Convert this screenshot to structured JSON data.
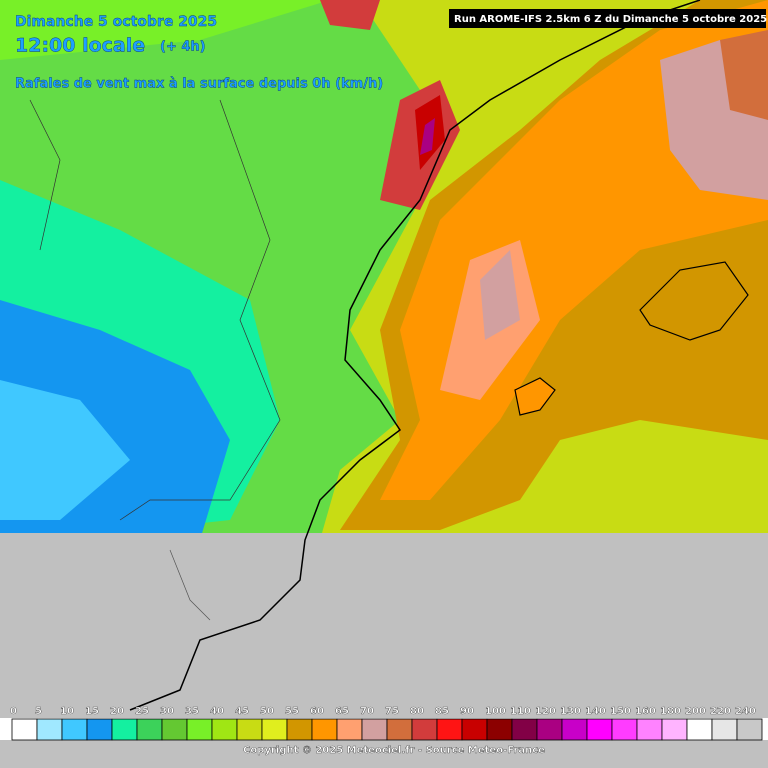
{
  "header": {
    "date": "Dimanche 5 octobre 2025",
    "time": "12:00 locale",
    "offset": "(+ 4h)",
    "subtitle": "Rafales de vent max à la surface depuis 0h (km/h)",
    "run": "Run AROME-IFS 2.5km 6 Z du Dimanche 5 octobre 2025"
  },
  "legend": {
    "ticks": [
      0,
      5,
      10,
      15,
      20,
      25,
      30,
      35,
      40,
      45,
      50,
      55,
      60,
      65,
      70,
      75,
      80,
      85,
      90,
      100,
      110,
      120,
      130,
      140,
      150,
      160,
      180,
      200,
      220,
      240
    ],
    "colors": [
      "#ffffff",
      "#a0e8ff",
      "#40c8ff",
      "#1496f0",
      "#14f0a0",
      "#3cd25a",
      "#64c832",
      "#78f028",
      "#a0e614",
      "#c8dc14",
      "#e0ee1e",
      "#d29600",
      "#ff9600",
      "#ffa070",
      "#d2a0a0",
      "#d26e3c",
      "#d23c3c",
      "#ff1414",
      "#c80000",
      "#8c0000",
      "#820046",
      "#aa0082",
      "#c800c8",
      "#ff00ff",
      "#ff3cff",
      "#ff82ff",
      "#ffb4ff",
      "#ffffff",
      "#e6e6e6",
      "#c8c8c8"
    ]
  },
  "footer": {
    "copyright": "Copyright © 2025 Meteociel.fr - Source Meteo-France"
  }
}
